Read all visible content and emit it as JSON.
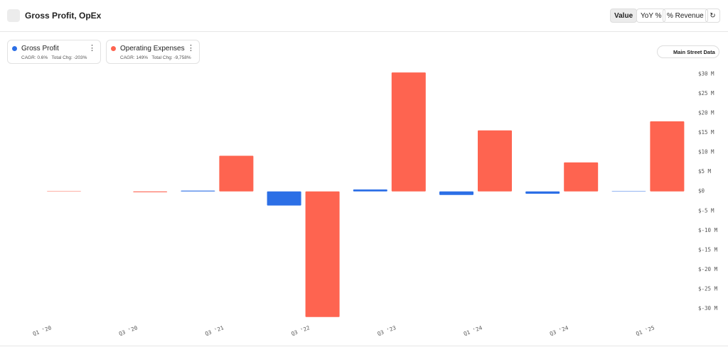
{
  "header": {
    "title": "Gross Profit, OpEx",
    "buttons": [
      "Value",
      "YoY %",
      "% Revenue"
    ]
  },
  "legend_cards": [
    {
      "name": "Gross Profit",
      "cagr": "CAGR: 0.6%",
      "total": "Total Chg: -203%"
    },
    {
      "name": "Operating Expenses",
      "cagr": "CAGR: 149%",
      "total": "Total Chg: -9,758%"
    }
  ],
  "badge": "Main Street Data",
  "chart_data": {
    "type": "bar",
    "categories": [
      "Q1 '20",
      "Q3 '20",
      "Q3 '21",
      "Q3 '22",
      "Q3 '23",
      "Q1 '24",
      "Q3 '24",
      "Q1 '25"
    ],
    "series": [
      {
        "name": "Gross Profit",
        "color": "#2c6fe6",
        "values": [
          0,
          0,
          0.2,
          -3.6,
          0.5,
          -0.9,
          -0.6,
          0.1
        ]
      },
      {
        "name": "Operating Expenses",
        "color": "#fe6450",
        "values": [
          0.1,
          -0.2,
          9.1,
          -32.1,
          30.4,
          15.6,
          7.4,
          17.9
        ]
      }
    ],
    "ylim": [
      -32.5,
      31.5
    ],
    "yticks": [
      {
        "value": 30,
        "label": "$30 M"
      },
      {
        "value": 25,
        "label": "$25 M"
      },
      {
        "value": 20,
        "label": "$20 M"
      },
      {
        "value": 15,
        "label": "$15 M"
      },
      {
        "value": 10,
        "label": "$10 M"
      },
      {
        "value": 5,
        "label": "$5 M"
      },
      {
        "value": 0,
        "label": "$0"
      },
      {
        "value": -5,
        "label": "$-5 M"
      },
      {
        "value": -10,
        "label": "$-10 M"
      },
      {
        "value": -15,
        "label": "$-15 M"
      },
      {
        "value": -20,
        "label": "$-20 M"
      },
      {
        "value": -25,
        "label": "$-25 M"
      },
      {
        "value": -30,
        "label": "$-30 M"
      }
    ],
    "grid": false
  }
}
